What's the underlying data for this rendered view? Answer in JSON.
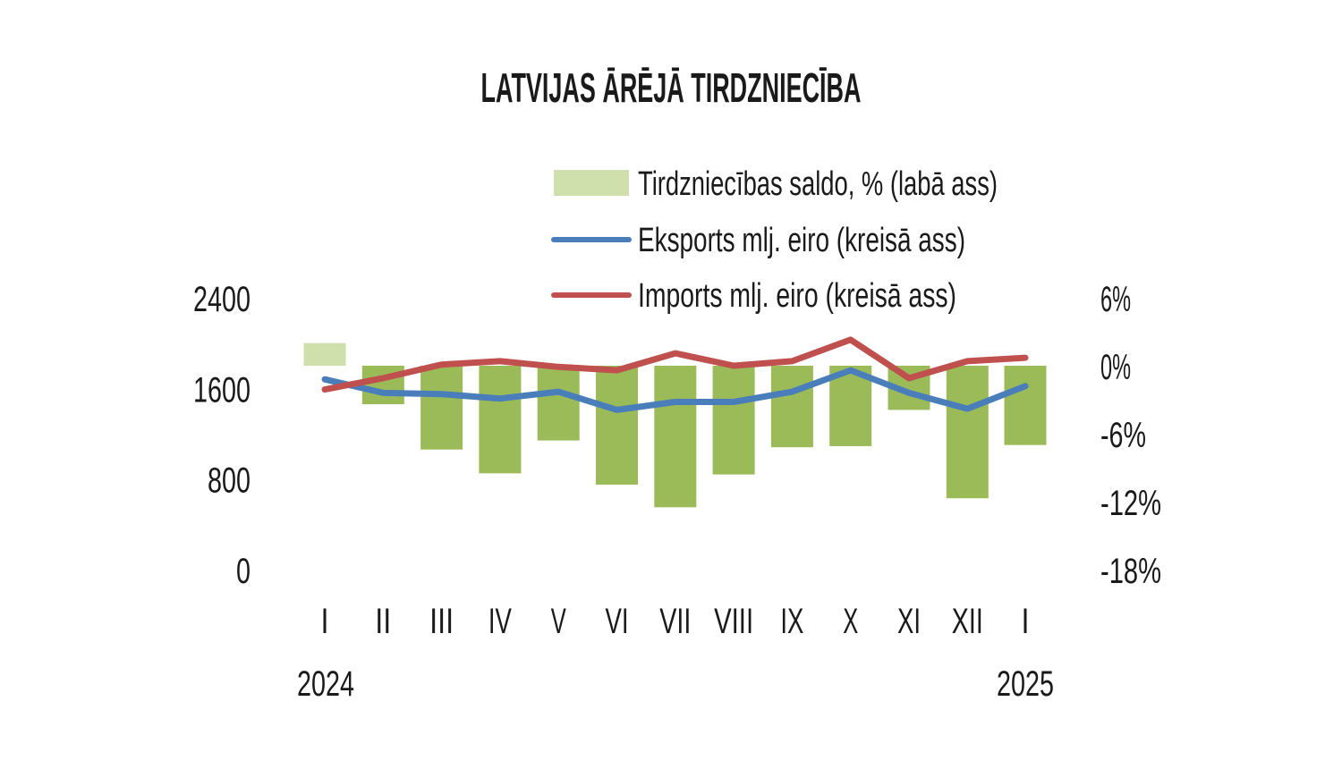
{
  "chart_data": {
    "type": "bar+line",
    "title": "LATVIJAS ĀRĒJĀ TIRDZNIECĪBA",
    "categories": [
      "I",
      "II",
      "III",
      "IV",
      "V",
      "VI",
      "VII",
      "VIII",
      "IX",
      "X",
      "XI",
      "XII",
      "I"
    ],
    "year_labels": {
      "first": "2024",
      "last": "2025"
    },
    "y_left": {
      "ylim": [
        0,
        2400
      ],
      "ticks": [
        "0",
        "800",
        "1600",
        "2400"
      ]
    },
    "y_right": {
      "ylim": [
        -18,
        6
      ],
      "ticks": [
        "-18%",
        "-12%",
        "-6%",
        "0%",
        "6%"
      ]
    },
    "grid": false,
    "legend_position": "top",
    "series": [
      {
        "name": "Tirdzniecības saldo, % (labā ass)",
        "type": "bar",
        "axis": "right",
        "color": "#9bbb59",
        "highlight_color": "#cfe0ad",
        "values": [
          2.0,
          -3.4,
          -7.4,
          -9.5,
          -6.6,
          -10.5,
          -12.5,
          -9.6,
          -7.2,
          -7.1,
          -3.9,
          -11.7,
          -7.0
        ]
      },
      {
        "name": "Eksports mlj. eiro (kreisā ass)",
        "type": "line",
        "axis": "left",
        "color": "#4a7ebb",
        "values": [
          1680,
          1560,
          1550,
          1510,
          1570,
          1410,
          1480,
          1480,
          1570,
          1760,
          1560,
          1420,
          1620
        ]
      },
      {
        "name": "Imports mlj. eiro (kreisā ass)",
        "type": "line",
        "axis": "left",
        "color": "#c0504d",
        "values": [
          1590,
          1690,
          1810,
          1840,
          1790,
          1760,
          1910,
          1800,
          1840,
          2030,
          1690,
          1840,
          1870
        ]
      }
    ]
  }
}
